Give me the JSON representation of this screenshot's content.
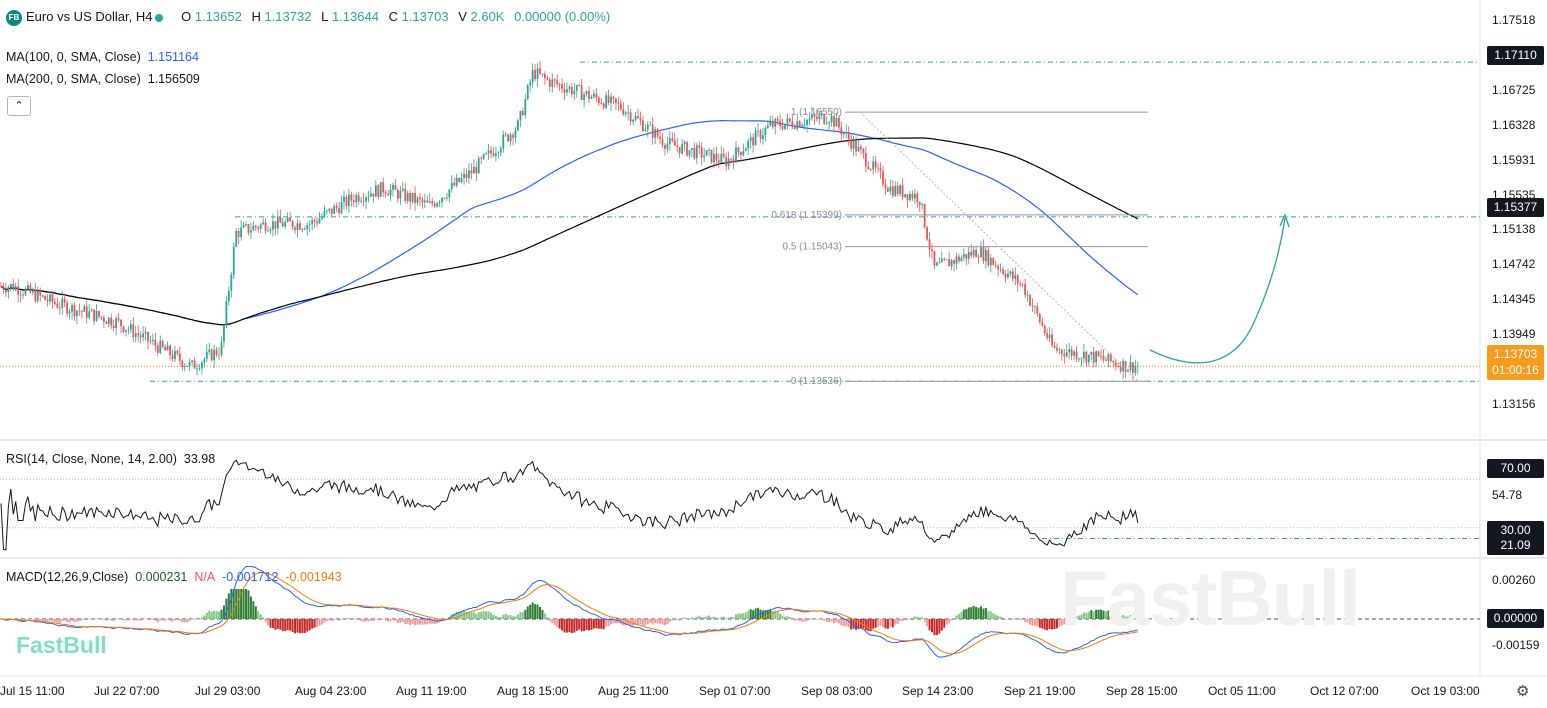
{
  "header": {
    "badge": "FB",
    "symbol": "Euro vs US Dollar, H4",
    "o_label": "O",
    "o_value": "1.13652",
    "h_label": "H",
    "h_value": "1.13732",
    "l_label": "L",
    "l_value": "1.13644",
    "c_label": "C",
    "c_value": "1.13703",
    "v_label": "V",
    "v_value": "2.60K",
    "change": "0.00000 (0.00%)"
  },
  "indicators": {
    "ma100_label": "MA(100, 0, SMA, Close)",
    "ma100_value": "1.151164",
    "ma200_label": "MA(200, 0, SMA, Close)",
    "ma200_value": "1.156509",
    "rsi_label": "RSI(14, Close, None, 14, 2.00)",
    "rsi_value": "33.98",
    "macd_label": "MACD(12,26,9,Close)",
    "macd_hist": "0.000231",
    "macd_na": "N/A",
    "macd_line": "-0.001712",
    "macd_signal": "-0.001943"
  },
  "price_axis": {
    "ticks": [
      "1.17518",
      "1.16725",
      "1.16328",
      "1.15931",
      "1.15535",
      "1.15138",
      "1.14742",
      "1.14345",
      "1.13949",
      "1.13156"
    ],
    "box_top": "1.17110",
    "box_mid": "1.15377",
    "box_last": "1.13703",
    "box_timer": "01:00:16"
  },
  "rsi_axis": {
    "ticks": [
      "54.78"
    ],
    "box_70": "70.00",
    "box_30": "30.00",
    "box_low": "21.09"
  },
  "macd_axis": {
    "ticks": [
      "0.00260",
      "-0.00159"
    ],
    "box_zero": "0.00000"
  },
  "time_axis": [
    "Jul 15 11:00",
    "Jul 22 07:00",
    "Jul 29 03:00",
    "Aug 04 23:00",
    "Aug 11 19:00",
    "Aug 18 15:00",
    "Aug 25 11:00",
    "Sep 01 07:00",
    "Sep 08 03:00",
    "Sep 14 23:00",
    "Sep 21 19:00",
    "Sep 28 15:00",
    "Oct 05 11:00",
    "Oct 12 07:00",
    "Oct 19 03:00"
  ],
  "fib": {
    "level_1": "1 (1.16550)",
    "level_618": "0.618 (1.15399)",
    "level_05": "0.5 (1.15043)",
    "level_0": "0 (1.13536)"
  },
  "watermark": {
    "big": "FastBull",
    "small": "FastBull"
  },
  "colors": {
    "up": "#26a69a",
    "down": "#ef5350",
    "ma100": "#2962ff",
    "ma200": "#000000",
    "accent": "#26a69a",
    "orange": "#f57c00"
  },
  "chart_data": {
    "type": "candlestick",
    "symbol": "EURUSD H4",
    "y_range": [
      1.129,
      1.1775
    ],
    "x_range": [
      "Jul 15 11:00",
      "Oct 19 03:00"
    ],
    "anchor_points": [
      {
        "date": "Jul 15",
        "close": 1.146
      },
      {
        "date": "Jul 18",
        "close": 1.144
      },
      {
        "date": "Jul 22",
        "close": 1.142
      },
      {
        "date": "Jul 25",
        "close": 1.139
      },
      {
        "date": "Jul 27",
        "close": 1.137
      },
      {
        "date": "Jul 29",
        "close": 1.139
      },
      {
        "date": "Jul 30",
        "close": 1.152
      },
      {
        "date": "Aug 01",
        "close": 1.153
      },
      {
        "date": "Aug 04",
        "close": 1.153
      },
      {
        "date": "Aug 07",
        "close": 1.156
      },
      {
        "date": "Aug 09",
        "close": 1.157
      },
      {
        "date": "Aug 12",
        "close": 1.155
      },
      {
        "date": "Aug 15",
        "close": 1.159
      },
      {
        "date": "Aug 18",
        "close": 1.164
      },
      {
        "date": "Aug 19",
        "close": 1.17
      },
      {
        "date": "Aug 20",
        "close": 1.169
      },
      {
        "date": "Aug 25",
        "close": 1.166
      },
      {
        "date": "Aug 28",
        "close": 1.162
      },
      {
        "date": "Sep 01",
        "close": 1.16
      },
      {
        "date": "Sep 04",
        "close": 1.164
      },
      {
        "date": "Sep 08",
        "close": 1.165
      },
      {
        "date": "Sep 10",
        "close": 1.161
      },
      {
        "date": "Sep 12",
        "close": 1.157
      },
      {
        "date": "Sep 14",
        "close": 1.156
      },
      {
        "date": "Sep 15",
        "close": 1.148
      },
      {
        "date": "Sep 18",
        "close": 1.15
      },
      {
        "date": "Sep 21",
        "close": 1.146
      },
      {
        "date": "Sep 23",
        "close": 1.139
      },
      {
        "date": "Sep 26",
        "close": 1.138
      },
      {
        "date": "Sep 28",
        "close": 1.13703
      }
    ],
    "last": {
      "open": 1.13652,
      "high": 1.13732,
      "low": 1.13644,
      "close": 1.13703,
      "volume": "2.60K"
    },
    "series": [
      {
        "name": "MA(100, 0, SMA, Close)",
        "last": 1.151164
      },
      {
        "name": "MA(200, 0, SMA, Close)",
        "last": 1.156509
      }
    ],
    "horizontal_levels": [
      1.1711,
      1.15377,
      1.13536
    ],
    "fibonacci": [
      {
        "level": 1,
        "price": 1.1655
      },
      {
        "level": 0.618,
        "price": 1.15399
      },
      {
        "level": 0.5,
        "price": 1.15043
      },
      {
        "level": 0,
        "price": 1.13536
      }
    ],
    "rsi": {
      "length": 14,
      "last": 33.98,
      "upper": 70,
      "lower": 30,
      "marked_low": 21.09
    },
    "macd": {
      "fast": 12,
      "slow": 26,
      "signal": 9,
      "histogram": 0.000231,
      "macd": -0.001712,
      "signal_value": -0.001943
    }
  }
}
